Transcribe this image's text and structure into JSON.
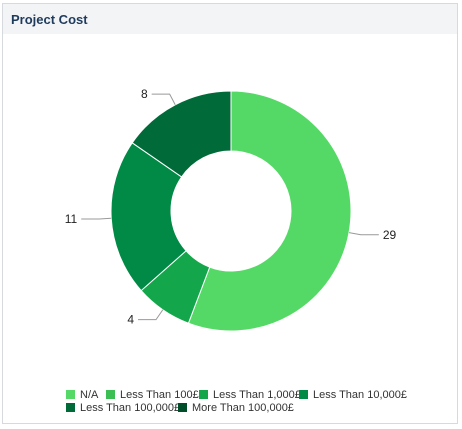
{
  "panel": {
    "title": "Project Cost"
  },
  "chart_data": {
    "type": "pie",
    "variant": "donut",
    "title": "Project Cost",
    "categories": [
      "N/A",
      "Less Than 100£",
      "Less Than 1,000£",
      "Less Than 10,000£",
      "Less Than 100,000£",
      "More Than 100,000£"
    ],
    "values": [
      29,
      0,
      4,
      11,
      8,
      0
    ],
    "colors": [
      "#55d966",
      "#3cbf52",
      "#14a64a",
      "#008a46",
      "#006b38",
      "#004d2a"
    ],
    "data_labels": [
      "29",
      "",
      "4",
      "11",
      "8",
      ""
    ],
    "legend_position": "bottom"
  }
}
